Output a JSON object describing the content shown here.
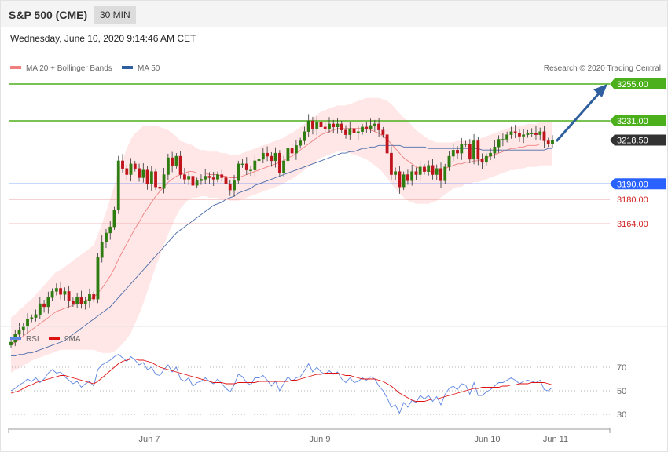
{
  "header": {
    "title": "S&P 500 (CME)",
    "interval": "30 MIN"
  },
  "datetime": "Wednesday, June 10, 2020 9:14:46 AM CET",
  "copyright": "Research © 2020 Trading Central",
  "legend": {
    "ma20": "MA 20 + Bollinger Bands",
    "ma50": "MA 50",
    "rsi": "RSI",
    "ma9": "9MA"
  },
  "colors": {
    "up": "#2e7d10",
    "down": "#c0141c",
    "green_level": "#4caf1c",
    "blue_level": "#2962ff",
    "red_level": "#e88080",
    "bb_fill": "#ffe3e3",
    "ma20": "#f08080",
    "ma50": "#4a6ba8",
    "rsi": "#5f86e0",
    "rsi_ma": "#e01010",
    "arrow": "#2f5f9e",
    "last_price": "#333333"
  },
  "chart_data": [
    {
      "type": "candlestick",
      "title": "S&P 500 (CME) 30 MIN",
      "x_ticks": [
        "Jun 7",
        "Jun 9",
        "Jun 10",
        "Jun 11"
      ],
      "y_range": [
        3080,
        3265
      ],
      "levels": [
        {
          "label": "3255.00",
          "value": 3255,
          "kind": "resistance"
        },
        {
          "label": "3231.00",
          "value": 3231,
          "kind": "resistance"
        },
        {
          "label": "3218.50",
          "value": 3218.5,
          "kind": "last"
        },
        {
          "label": "3190.00",
          "value": 3190,
          "kind": "pivot"
        },
        {
          "label": "3180.00",
          "value": 3180,
          "kind": "support"
        },
        {
          "label": "3164.00",
          "value": 3164,
          "kind": "support"
        }
      ],
      "closes": [
        3087,
        3092,
        3095,
        3097,
        3102,
        3103,
        3105,
        3112,
        3110,
        3116,
        3120,
        3122,
        3118,
        3120,
        3114,
        3112,
        3116,
        3112,
        3114,
        3118,
        3115,
        3142,
        3152,
        3158,
        3162,
        3173,
        3205,
        3200,
        3196,
        3203,
        3200,
        3194,
        3199,
        3190,
        3198,
        3188,
        3187,
        3196,
        3207,
        3202,
        3208,
        3196,
        3193,
        3195,
        3189,
        3192,
        3193,
        3195,
        3194,
        3193,
        3196,
        3194,
        3190,
        3186,
        3192,
        3203,
        3203,
        3199,
        3199,
        3205,
        3206,
        3210,
        3208,
        3205,
        3210,
        3197,
        3205,
        3213,
        3210,
        3215,
        3218,
        3224,
        3231,
        3226,
        3230,
        3227,
        3226,
        3229,
        3227,
        3229,
        3225,
        3222,
        3226,
        3223,
        3224,
        3227,
        3226,
        3228,
        3229,
        3225,
        3222,
        3210,
        3196,
        3198,
        3188,
        3196,
        3192,
        3198,
        3196,
        3201,
        3198,
        3202,
        3196,
        3200,
        3192,
        3201,
        3208,
        3212,
        3210,
        3216,
        3216,
        3206,
        3218,
        3206,
        3204,
        3208,
        3210,
        3214,
        3219,
        3219,
        3222,
        3224,
        3223,
        3221,
        3222,
        3223,
        3223,
        3222,
        3224,
        3218,
        3216,
        3218.5
      ],
      "ma20": [
        3085,
        3087,
        3089,
        3091,
        3093,
        3095,
        3097,
        3099,
        3101,
        3103,
        3105,
        3107,
        3108,
        3109,
        3110,
        3111,
        3112,
        3113,
        3114,
        3115,
        3116,
        3119,
        3122,
        3126,
        3130,
        3135,
        3141,
        3146,
        3151,
        3156,
        3161,
        3165,
        3170,
        3174,
        3178,
        3182,
        3185,
        3188,
        3191,
        3193,
        3195,
        3196,
        3197,
        3198,
        3198,
        3197,
        3197,
        3197,
        3196,
        3196,
        3196,
        3195,
        3195,
        3194,
        3194,
        3194,
        3195,
        3196,
        3197,
        3198,
        3199,
        3200,
        3201,
        3202,
        3203,
        3204,
        3205,
        3207,
        3208,
        3210,
        3212,
        3214,
        3216,
        3218,
        3220,
        3222,
        3223,
        3224,
        3225,
        3226,
        3226,
        3226,
        3226,
        3226,
        3226,
        3226,
        3226,
        3225,
        3224,
        3223,
        3221,
        3219,
        3216,
        3213,
        3210,
        3207,
        3205,
        3203,
        3201,
        3200,
        3199,
        3198,
        3198,
        3198,
        3199,
        3200,
        3201,
        3202,
        3203,
        3203,
        3204,
        3204,
        3205,
        3205,
        3206,
        3207,
        3208,
        3209,
        3210,
        3211,
        3212,
        3213,
        3213,
        3214,
        3214,
        3215,
        3215,
        3215,
        3216,
        3216,
        3216,
        3216
      ],
      "ma50": [
        3078,
        3078,
        3079,
        3079,
        3080,
        3080,
        3081,
        3082,
        3083,
        3084,
        3085,
        3086,
        3087,
        3088,
        3090,
        3092,
        3094,
        3096,
        3098,
        3100,
        3102,
        3104,
        3106,
        3108,
        3110,
        3113,
        3116,
        3119,
        3122,
        3125,
        3128,
        3131,
        3134,
        3137,
        3140,
        3143,
        3146,
        3149,
        3152,
        3155,
        3158,
        3160,
        3162,
        3164,
        3166,
        3168,
        3170,
        3172,
        3174,
        3176,
        3177,
        3178,
        3180,
        3181,
        3182,
        3184,
        3185,
        3186,
        3187,
        3189,
        3190,
        3191,
        3192,
        3193,
        3194,
        3195,
        3196,
        3197,
        3198,
        3199,
        3200,
        3201,
        3202,
        3203,
        3204,
        3205,
        3206,
        3207,
        3208,
        3209,
        3210,
        3210,
        3211,
        3211,
        3212,
        3213,
        3213,
        3214,
        3214,
        3215,
        3215,
        3215,
        3215,
        3215,
        3215,
        3214,
        3214,
        3214,
        3214,
        3214,
        3214,
        3213,
        3213,
        3213,
        3213,
        3213,
        3213,
        3213,
        3213,
        3213,
        3213,
        3213,
        3213,
        3213,
        3212,
        3212,
        3212,
        3212,
        3212,
        3212,
        3212,
        3212,
        3212,
        3212,
        3212,
        3212,
        3212,
        3212,
        3212,
        3212,
        3213,
        3213
      ],
      "bb_width": [
        18,
        18,
        19,
        19,
        20,
        20,
        21,
        22,
        23,
        24,
        25,
        26,
        26,
        27,
        28,
        29,
        30,
        31,
        32,
        33,
        34,
        38,
        42,
        46,
        50,
        54,
        58,
        60,
        62,
        63,
        62,
        60,
        58,
        54,
        50,
        46,
        42,
        38,
        34,
        30,
        26,
        22,
        20,
        18,
        17,
        16,
        15,
        15,
        15,
        15,
        15,
        15,
        15,
        15,
        15,
        15,
        15,
        15,
        15,
        15,
        15,
        15,
        15,
        15,
        15,
        15,
        15,
        15,
        15,
        15,
        15,
        15,
        15,
        15,
        15,
        15,
        15,
        15,
        15,
        15,
        15,
        15,
        16,
        17,
        18,
        19,
        20,
        21,
        22,
        23,
        24,
        25,
        26,
        26,
        26,
        26,
        26,
        25,
        24,
        23,
        22,
        21,
        20,
        19,
        18,
        17,
        16,
        15,
        15,
        15,
        14,
        14,
        14,
        14,
        14,
        14,
        14,
        14,
        14,
        14,
        14,
        14,
        14,
        14,
        14,
        14,
        14,
        14,
        14,
        14,
        14,
        14
      ]
    },
    {
      "type": "line",
      "title": "RSI",
      "y_ticks": [
        70,
        50,
        30
      ],
      "y_range": [
        20,
        85
      ],
      "rsi": [
        50,
        52,
        55,
        57,
        60,
        58,
        61,
        57,
        60,
        65,
        68,
        65,
        66,
        62,
        59,
        56,
        58,
        53,
        56,
        58,
        54,
        68,
        72,
        74,
        76,
        79,
        81,
        78,
        75,
        79,
        76,
        72,
        74,
        68,
        70,
        64,
        63,
        68,
        72,
        66,
        70,
        60,
        58,
        61,
        54,
        57,
        58,
        61,
        58,
        56,
        60,
        56,
        52,
        49,
        55,
        64,
        62,
        57,
        55,
        61,
        61,
        63,
        59,
        54,
        58,
        50,
        56,
        62,
        58,
        61,
        62,
        67,
        73,
        66,
        70,
        66,
        64,
        67,
        64,
        66,
        60,
        57,
        61,
        57,
        58,
        61,
        59,
        62,
        60,
        54,
        50,
        44,
        36,
        38,
        31,
        40,
        36,
        42,
        40,
        46,
        43,
        46,
        41,
        45,
        38,
        47,
        52,
        54,
        51,
        56,
        55,
        47,
        57,
        46,
        46,
        49,
        51,
        54,
        57,
        57,
        59,
        61,
        59,
        56,
        58,
        59,
        58,
        57,
        59,
        51,
        50,
        53
      ],
      "rsi_ma9": [
        48,
        49,
        50,
        52,
        54,
        55,
        57,
        58,
        59,
        60,
        61,
        62,
        63,
        63,
        62,
        61,
        60,
        59,
        58,
        57,
        56,
        58,
        61,
        64,
        67,
        70,
        73,
        75,
        76,
        77,
        77,
        76,
        76,
        75,
        74,
        72,
        70,
        69,
        68,
        67,
        66,
        65,
        64,
        63,
        62,
        61,
        60,
        59,
        58,
        57,
        57,
        57,
        56,
        56,
        56,
        57,
        57,
        57,
        57,
        57,
        58,
        58,
        58,
        58,
        58,
        58,
        58,
        58,
        59,
        59,
        60,
        61,
        62,
        63,
        64,
        64,
        65,
        65,
        65,
        65,
        64,
        63,
        63,
        62,
        61,
        60,
        60,
        60,
        60,
        59,
        58,
        56,
        54,
        51,
        48,
        46,
        44,
        42,
        41,
        41,
        41,
        42,
        43,
        43,
        44,
        45,
        46,
        47,
        48,
        49,
        50,
        51,
        52,
        52,
        53,
        53,
        53,
        53,
        53,
        54,
        54,
        55,
        55,
        56,
        56,
        56,
        57,
        57,
        57,
        57,
        56,
        55
      ]
    }
  ]
}
